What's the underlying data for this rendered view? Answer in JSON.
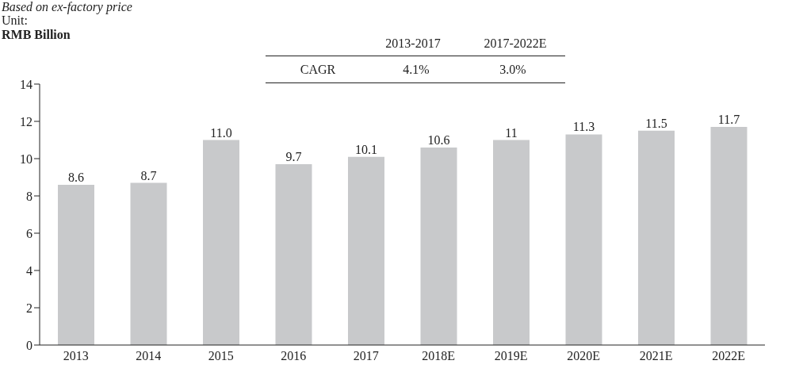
{
  "chart_data": {
    "type": "bar",
    "subtitle": "Based on ex-factory price",
    "ylabel": "RMB Billion",
    "annotations": [
      "Unit:",
      "2013-2017",
      "2017-2022E",
      "CAGR",
      "4.1%",
      "3.0%"
    ],
    "categories": [
      "2013",
      "2014",
      "2015",
      "2016",
      "2017",
      "2018E",
      "2019E",
      "2020E",
      "2021E",
      "2022E"
    ],
    "values": [
      8.6,
      8.7,
      11.0,
      9.7,
      10.1,
      10.6,
      11,
      11.3,
      11.5,
      11.7
    ],
    "value_labels": [
      "8.6",
      "8.7",
      "11.0",
      "9.7",
      "10.1",
      "10.6",
      "11",
      "11.3",
      "11.5",
      "11.7"
    ],
    "color": "#c8c9cb",
    "ylim": [
      0,
      14
    ],
    "yticks": [
      0,
      2,
      4,
      6,
      8,
      10,
      12,
      14
    ],
    "grid": false
  }
}
